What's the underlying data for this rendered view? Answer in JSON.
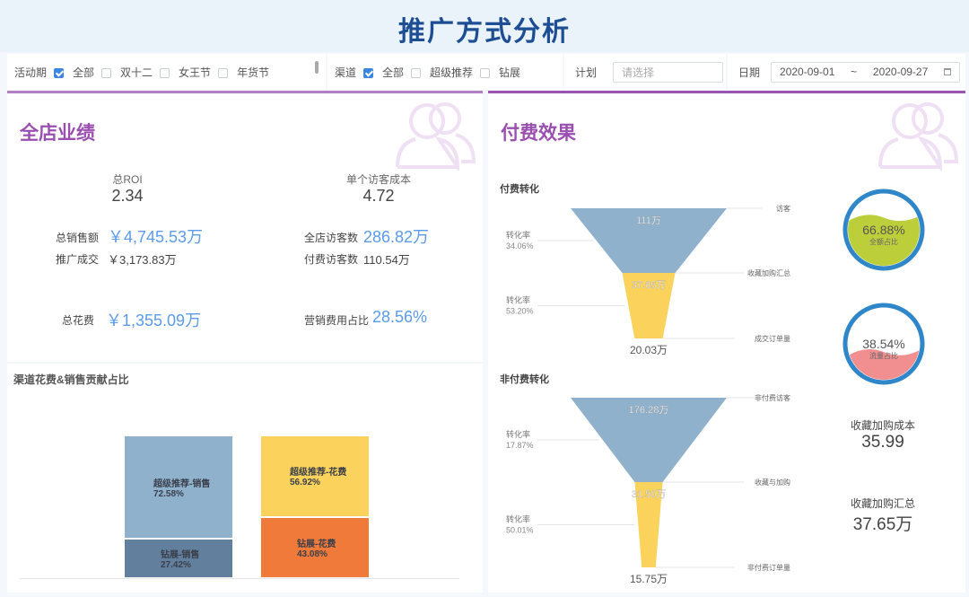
{
  "title": "推广方式分析",
  "filters": {
    "activity": {
      "label": "活动期",
      "options": [
        {
          "label": "全部",
          "checked": true
        },
        {
          "label": "双十二",
          "checked": false
        },
        {
          "label": "女王节",
          "checked": false
        },
        {
          "label": "年货节",
          "checked": false
        }
      ]
    },
    "channel": {
      "label": "渠道",
      "options": [
        {
          "label": "全部",
          "checked": true
        },
        {
          "label": "超级推荐",
          "checked": false
        },
        {
          "label": "钻展",
          "checked": false
        }
      ]
    },
    "plan": {
      "label": "计划",
      "placeholder": "请选择"
    },
    "date": {
      "label": "日期",
      "start": "2020-09-01",
      "sep": "~",
      "end": "2020-09-27",
      "icon": "calendar-icon"
    }
  },
  "left": {
    "title": "全店业绩",
    "roi": {
      "label": "总ROI",
      "value": "2.34"
    },
    "visitor_cost": {
      "label": "单个访客成本",
      "value": "4.72"
    },
    "total_sales": {
      "label": "总销售额",
      "value": "￥4,745.53万"
    },
    "promo_deal": {
      "label": "推广成交",
      "value": "￥3,173.83万"
    },
    "store_visitors": {
      "label": "全店访客数",
      "value": "286.82万"
    },
    "paid_visitors": {
      "label": "付费访客数",
      "value": "110.54万"
    },
    "total_spend": {
      "label": "总花费",
      "value": "￥1,355.09万"
    },
    "marketing_ratio": {
      "label": "营销费用占比",
      "value": "28.56%"
    }
  },
  "chart_data": {
    "type": "bar",
    "title": "渠道花费&销售贡献占比",
    "stacked": true,
    "bars": [
      {
        "segments": [
          {
            "name": "钻展-销售",
            "value": 27.42,
            "label": "27.42%",
            "color": "#627f9d"
          },
          {
            "name": "超级推荐-销售",
            "value": 72.58,
            "label": "72.58%",
            "color": "#8fb1cc"
          }
        ]
      },
      {
        "segments": [
          {
            "name": "钻展-花费",
            "value": 43.08,
            "label": "43.08%",
            "color": "#f07a3a"
          },
          {
            "name": "超级推荐-花费",
            "value": 56.92,
            "label": "56.92%",
            "color": "#fbd35c"
          }
        ]
      }
    ]
  },
  "right": {
    "title": "付费效果",
    "paid_funnel": {
      "title": "付费转化",
      "stages": [
        {
          "name": "访客",
          "value": 111,
          "label": "111万"
        },
        {
          "name": "收藏加购汇总",
          "value": 37.65,
          "label": "37.65万"
        },
        {
          "name": "成交订单量",
          "value": 20.03,
          "label": "20.03万"
        }
      ],
      "rates": [
        {
          "label": "转化率",
          "value": "34.06%"
        },
        {
          "label": "转化率",
          "value": "53.20%"
        }
      ]
    },
    "free_funnel": {
      "title": "非付费转化",
      "stages": [
        {
          "name": "非付费访客",
          "value": 176.28,
          "label": "176.28万"
        },
        {
          "name": "收藏与加购",
          "value": 31.5,
          "label": "31.50万"
        },
        {
          "name": "非付费订单量",
          "value": 15.75,
          "label": "15.75万"
        }
      ],
      "rates": [
        {
          "label": "转化率",
          "value": "17.87%"
        },
        {
          "label": "转化率",
          "value": "50.01%"
        }
      ]
    },
    "gauge1": {
      "value": "66.88%",
      "fraction": 0.6688,
      "label": "全额占比",
      "color": "#bccf3a"
    },
    "gauge2": {
      "value": "38.54%",
      "fraction": 0.3854,
      "label": "流量占比",
      "color": "#f08e90"
    },
    "fav_cost": {
      "label": "收藏加购成本",
      "value": "35.99"
    },
    "fav_total": {
      "label": "收藏加购汇总",
      "value": "37.65万"
    }
  }
}
